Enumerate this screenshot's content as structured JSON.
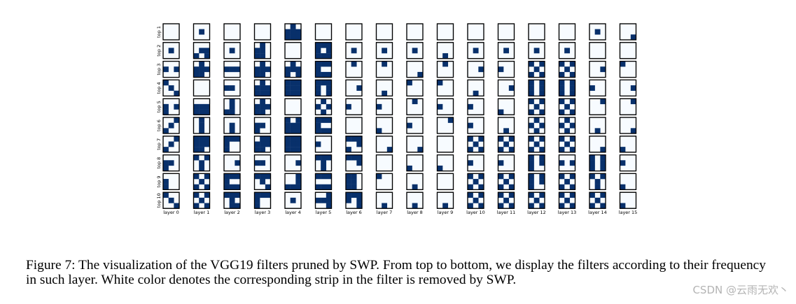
{
  "figure": {
    "row_labels": [
      "top 1",
      "top 2",
      "top 3",
      "top 4",
      "top 5",
      "top 6",
      "top 7",
      "top 8",
      "top 9",
      "top 10"
    ],
    "col_labels": [
      "layer 0",
      "layer 1",
      "layer 2",
      "layer 3",
      "layer 4",
      "layer 5",
      "layer 6",
      "layer 7",
      "layer 8",
      "layer 9",
      "layer 10",
      "layer 11",
      "layer 12",
      "layer 13",
      "layer 14",
      "layer 15"
    ],
    "colors": {
      "kept": "#08306b",
      "removed": "#f7fbff"
    },
    "filters": [
      [
        "000000000",
        "000010000",
        "000000000",
        "000000000",
        "010111111",
        "000000000",
        "000000000",
        "000000000",
        "000000000",
        "000000000",
        "000000000",
        "000000000",
        "000000000",
        "000000000",
        "000010000",
        "000000001"
      ],
      [
        "000010000",
        "000011101",
        "000010000",
        "010110110",
        "000000000",
        "111101111",
        "000010000",
        "000010000",
        "000010000",
        "000000010",
        "000010000",
        "000010000",
        "000010000",
        "000010000",
        "000000000",
        "000000000"
      ],
      [
        "000101000",
        "010111110",
        "000111000",
        "010111110",
        "010111101",
        "111100111",
        "010000000",
        "010000000",
        "000000001",
        "010000000",
        "000001000",
        "000100000",
        "101010101",
        "101010101",
        "000001000",
        "100000000"
      ],
      [
        "100010001",
        "000000000",
        "000110000",
        "010111111",
        "111111111",
        "111101101",
        "000001000",
        "000000010",
        "100000000",
        "100000000",
        "000000010",
        "000001000",
        "101101101",
        "101101101",
        "000100000",
        "000001000"
      ],
      [
        "000101100",
        "000111111",
        "010010110",
        "010111110",
        "000000000",
        "010101010",
        "000100000",
        "000100000",
        "010000000",
        "000100000",
        "000100000",
        "000000100",
        "101010101",
        "101010101",
        "001000000",
        "001000000"
      ],
      [
        "001010100",
        "010010010",
        "000010010",
        "000110100",
        "101111111",
        "111100111",
        "000000000",
        "000000100",
        "000100000",
        "001000000",
        "000100000",
        "000000010",
        "010101010",
        "010101010",
        "000000010",
        "000000001"
      ],
      [
        "001010100",
        "111111110",
        "111100100",
        "011111110",
        "111111111",
        "000100000",
        "111001100",
        "000000001",
        "000000001",
        "000000000",
        "101010101",
        "101010101",
        "101010101",
        "101010101",
        "000000001",
        "000000100"
      ],
      [
        "000110100",
        "101010010",
        "000001000",
        "000110000",
        "000001000",
        "111010010",
        "111001000",
        "000000000",
        "000000100",
        "000000100",
        "000100000",
        "000100000",
        "101101100",
        "000101000",
        "101101101",
        "000100000"
      ],
      [
        "000100100",
        "101010101",
        "111100111",
        "111010001",
        "001001111",
        "111000111",
        "110110110",
        "100000000",
        "000000010",
        "000000000",
        "101010101",
        "101010101",
        "101101100",
        "101010101",
        "101010010",
        "000000100"
      ],
      [
        "100010001",
        "101010101",
        "111010011",
        "111100100",
        "000010000",
        "001111001",
        "111101001",
        "000000010",
        "000000010",
        "000000010",
        "101010101",
        "101010101",
        "101010101",
        "101010101",
        "101010101",
        "000000100"
      ]
    ]
  },
  "caption": {
    "text": "Figure 7: The visualization of the VGG19 filters pruned by SWP. From top to bottom, we display the filters according to their frequency in such layer. White color denotes the corresponding strip in the filter is removed by SWP."
  },
  "watermark": {
    "text": "CSDN @云雨无欢丶"
  }
}
